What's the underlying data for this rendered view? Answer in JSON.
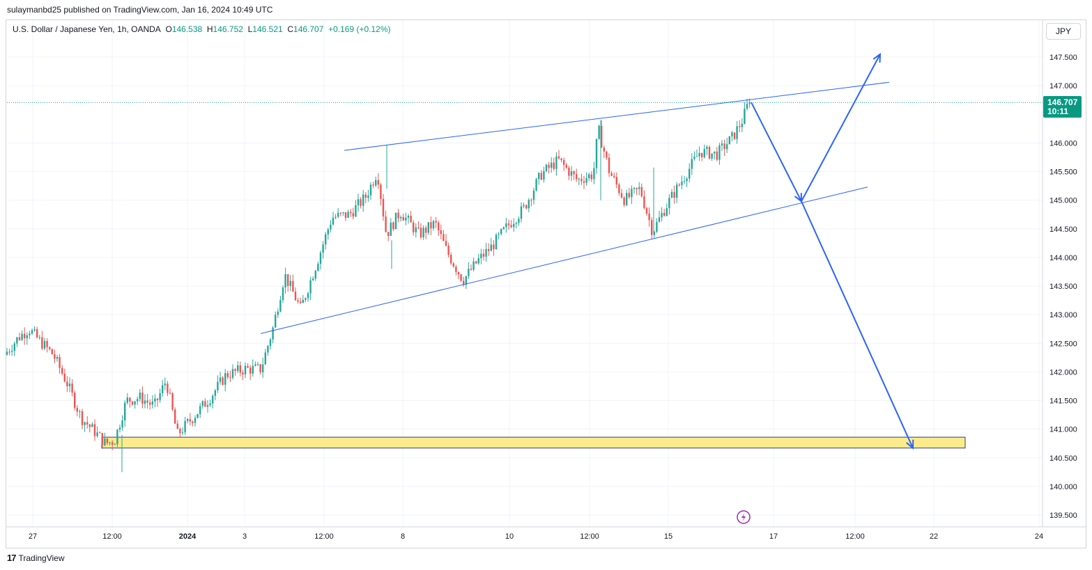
{
  "header": {
    "publisher_line": "sulaymanbd25 published on TradingView.com, Jan 16, 2024 10:49 UTC"
  },
  "legend": {
    "symbol": "U.S. Dollar / Japanese Yen, 1h, OANDA",
    "open_label": "O",
    "open": "146.538",
    "high_label": "H",
    "high": "146.752",
    "low_label": "L",
    "low": "146.521",
    "close_label": "C",
    "close": "146.707",
    "change": "+0.169 (+0.12%)"
  },
  "currency_button": "JPY",
  "price_tag": {
    "price": "146.707",
    "countdown": "10:11"
  },
  "footer": {
    "logo": "17",
    "brand": "TradingView"
  },
  "colors": {
    "up": "#26a69a",
    "down": "#ef5350",
    "drawing": "#2962ff",
    "zone_fill": "#fbeb8b",
    "zone_border": "#2a3a8c",
    "price_tag": "#089981",
    "grid": "#f0f3fa",
    "flash_icon": "#9c27b0"
  },
  "chart_data": {
    "type": "candlestick",
    "title": "U.S. Dollar / Japanese Yen, 1h, OANDA",
    "y_axis": {
      "min": 139.3,
      "max": 147.9,
      "ticks": [
        "147.500",
        "147.000",
        "146.000",
        "145.500",
        "145.000",
        "144.500",
        "144.000",
        "143.500",
        "143.000",
        "142.500",
        "142.000",
        "141.500",
        "141.000",
        "140.500",
        "140.000",
        "139.500"
      ]
    },
    "x_axis": {
      "ticks": [
        {
          "label": "27",
          "bold": false
        },
        {
          "label": "12:00",
          "bold": false
        },
        {
          "label": "2024",
          "bold": true
        },
        {
          "label": "3",
          "bold": false
        },
        {
          "label": "12:00",
          "bold": false
        },
        {
          "label": "8",
          "bold": false
        },
        {
          "label": "10",
          "bold": false
        },
        {
          "label": "12:00",
          "bold": false
        },
        {
          "label": "15",
          "bold": false
        },
        {
          "label": "17",
          "bold": false
        },
        {
          "label": "12:00",
          "bold": false
        },
        {
          "label": "22",
          "bold": false
        },
        {
          "label": "24",
          "bold": false
        }
      ]
    },
    "last_price": 146.707,
    "anchors": [
      {
        "t": 0,
        "p": 142.3
      },
      {
        "t": 20,
        "p": 142.6
      },
      {
        "t": 35,
        "p": 142.75
      },
      {
        "t": 50,
        "p": 142.55
      },
      {
        "t": 70,
        "p": 142.3
      },
      {
        "t": 90,
        "p": 141.8
      },
      {
        "t": 110,
        "p": 141.2
      },
      {
        "t": 130,
        "p": 140.95
      },
      {
        "t": 145,
        "p": 140.75
      },
      {
        "t": 158,
        "p": 140.8
      },
      {
        "t": 175,
        "p": 141.5
      },
      {
        "t": 195,
        "p": 141.55
      },
      {
        "t": 215,
        "p": 141.4
      },
      {
        "t": 232,
        "p": 141.85
      },
      {
        "t": 248,
        "p": 140.9
      },
      {
        "t": 270,
        "p": 141.2
      },
      {
        "t": 295,
        "p": 141.55
      },
      {
        "t": 318,
        "p": 141.95
      },
      {
        "t": 345,
        "p": 142.05
      },
      {
        "t": 368,
        "p": 142.05
      },
      {
        "t": 385,
        "p": 142.75
      },
      {
        "t": 402,
        "p": 143.7
      },
      {
        "t": 425,
        "p": 143.1
      },
      {
        "t": 448,
        "p": 143.9
      },
      {
        "t": 470,
        "p": 144.7
      },
      {
        "t": 495,
        "p": 144.75
      },
      {
        "t": 518,
        "p": 145.05
      },
      {
        "t": 535,
        "p": 145.5
      },
      {
        "t": 548,
        "p": 144.4
      },
      {
        "t": 568,
        "p": 144.8
      },
      {
        "t": 595,
        "p": 144.4
      },
      {
        "t": 618,
        "p": 144.6
      },
      {
        "t": 635,
        "p": 144.1
      },
      {
        "t": 658,
        "p": 143.6
      },
      {
        "t": 680,
        "p": 143.95
      },
      {
        "t": 700,
        "p": 144.2
      },
      {
        "t": 722,
        "p": 144.55
      },
      {
        "t": 745,
        "p": 144.85
      },
      {
        "t": 770,
        "p": 145.45
      },
      {
        "t": 795,
        "p": 145.7
      },
      {
        "t": 822,
        "p": 145.35
      },
      {
        "t": 845,
        "p": 145.45
      },
      {
        "t": 852,
        "p": 146.25
      },
      {
        "t": 868,
        "p": 145.5
      },
      {
        "t": 890,
        "p": 145.0
      },
      {
        "t": 912,
        "p": 145.2
      },
      {
        "t": 930,
        "p": 144.45
      },
      {
        "t": 952,
        "p": 144.95
      },
      {
        "t": 975,
        "p": 145.4
      },
      {
        "t": 998,
        "p": 145.85
      },
      {
        "t": 1022,
        "p": 145.8
      },
      {
        "t": 1045,
        "p": 146.1
      },
      {
        "t": 1059,
        "p": 146.4
      },
      {
        "t": 1068,
        "p": 146.71
      }
    ],
    "drawings": {
      "upper_trendline": [
        {
          "t": 484,
          "p": 145.87
        },
        {
          "t": 1266,
          "p": 147.06
        }
      ],
      "lower_trendline": [
        {
          "t": 364,
          "p": 142.67
        },
        {
          "t": 1235,
          "p": 145.23
        }
      ],
      "projection_up": [
        {
          "t": 1068,
          "p": 146.71
        },
        {
          "t": 1140,
          "p": 144.98
        },
        {
          "t": 1253,
          "p": 147.55
        }
      ],
      "projection_down": [
        {
          "t": 1140,
          "p": 144.98
        },
        {
          "t": 1300,
          "p": 140.67
        }
      ],
      "support_zone": {
        "t_start": 136,
        "t_end": 1375,
        "p_top": 140.86,
        "p_bottom": 140.67
      }
    }
  }
}
